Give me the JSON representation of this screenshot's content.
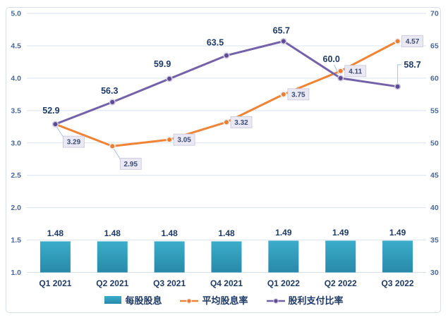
{
  "chart_data": {
    "type": "combo-bar-line",
    "title": "",
    "categories": [
      "Q1 2021",
      "Q2 2021",
      "Q3 2021",
      "Q4 2021",
      "Q1 2022",
      "Q2 2022",
      "Q3 2022"
    ],
    "series": [
      {
        "name": "每股股息",
        "type": "bar",
        "axis": "left",
        "color": "#2E9FBE",
        "gradient_top": "#3BADCA",
        "gradient_bottom": "#2889AA",
        "values": [
          1.48,
          1.48,
          1.48,
          1.48,
          1.49,
          1.49,
          1.49
        ],
        "labels": [
          "1.48",
          "1.48",
          "1.48",
          "1.48",
          "1.49",
          "1.49",
          "1.49"
        ]
      },
      {
        "name": "平均股息率",
        "type": "line",
        "axis": "left",
        "color": "#F08434",
        "marker_fill": "#ED7D31",
        "marker_ring": "#EDEDED",
        "label_style": "boxed",
        "values": [
          3.29,
          2.95,
          3.05,
          3.32,
          3.75,
          4.11,
          4.57
        ],
        "labels": [
          "3.29",
          "2.95",
          "3.05",
          "3.32",
          "3.75",
          "4.11",
          "4.57"
        ]
      },
      {
        "name": "股利支付比率",
        "type": "line",
        "axis": "right",
        "color": "#7462A8",
        "marker_fill": "#5D4A96",
        "marker_ring": "#CFCBDD",
        "label_style": "bold",
        "values": [
          52.9,
          56.3,
          59.9,
          63.5,
          65.7,
          60.0,
          58.7
        ],
        "labels": [
          "52.9",
          "56.3",
          "59.9",
          "63.5",
          "65.7",
          "60.0",
          "58.7"
        ]
      }
    ],
    "left_axis": {
      "min": 1.0,
      "max": 5.0,
      "step": 0.5,
      "tick_labels": [
        "5.0",
        "4.5",
        "4.0",
        "3.5",
        "3.0",
        "2.5",
        "2.0",
        "1.5",
        "1.0"
      ],
      "tick_values": [
        5.0,
        4.5,
        4.0,
        3.5,
        3.0,
        2.5,
        2.0,
        1.5,
        1.0
      ]
    },
    "right_axis": {
      "min": 30,
      "max": 70,
      "step": 5,
      "tick_labels": [
        "70",
        "65",
        "60",
        "55",
        "50",
        "45",
        "40",
        "35",
        "30"
      ],
      "tick_values": [
        70,
        65,
        60,
        55,
        50,
        45,
        40,
        35,
        30
      ]
    },
    "grid": true,
    "legend_position": "bottom",
    "palette": {
      "grid_line": "#D9E3F0",
      "frame_border": "#D9DEE8",
      "tick_text": "#4A689A",
      "bold_label_text": "#1E3A66",
      "box_label_text": "#3A4C74",
      "box_fill": "#EAE8F3",
      "box_border": "#C9C5DC",
      "leader_line": "#A6C3E3"
    }
  }
}
